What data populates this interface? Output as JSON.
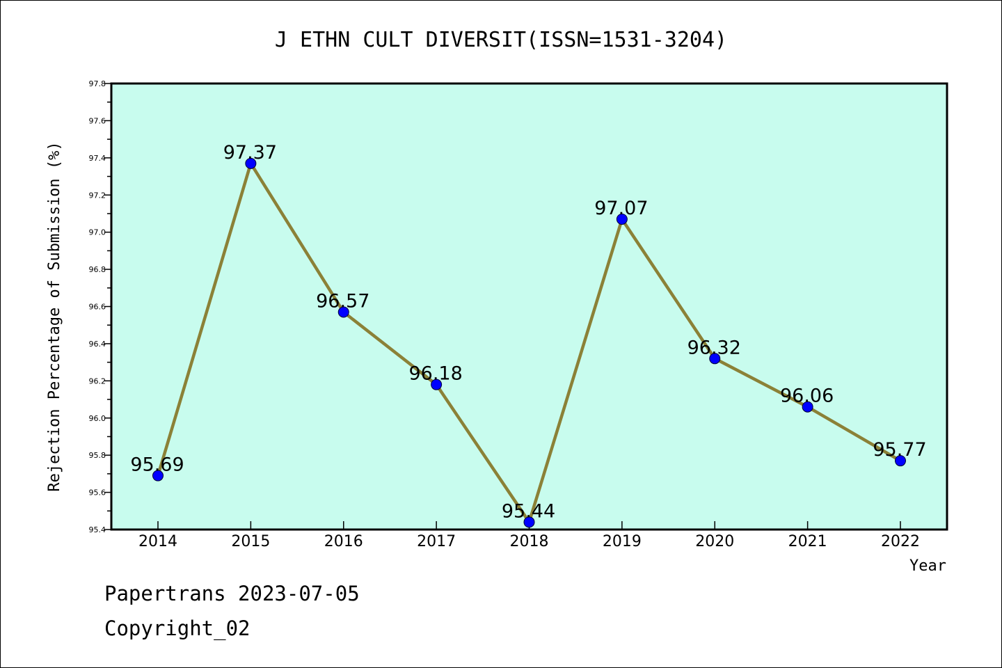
{
  "chart_data": {
    "type": "line",
    "title": "J ETHN CULT DIVERSIT(ISSN=1531-3204)",
    "xlabel": "Year",
    "ylabel": "Rejection Percentage of Submission (%)",
    "categories": [
      "2014",
      "2015",
      "2016",
      "2017",
      "2018",
      "2019",
      "2020",
      "2021",
      "2022"
    ],
    "series": [
      {
        "values": [
          95.69,
          97.37,
          96.57,
          96.18,
          95.44,
          97.07,
          96.32,
          96.06,
          95.77
        ],
        "labels": [
          "95.69",
          "97.37",
          "96.57",
          "96.18",
          "95.44",
          "97.07",
          "96.32",
          "96.06",
          "95.77"
        ]
      }
    ],
    "ylim": [
      95.4,
      97.8
    ],
    "yticks": [
      "95.4",
      "95.6",
      "95.8",
      "96.0",
      "96.2",
      "96.4",
      "96.6",
      "96.8",
      "97.0",
      "97.2",
      "97.4",
      "97.6",
      "97.8"
    ],
    "grid": false,
    "colors": {
      "plot_background": "#c8fcee",
      "line": "#8b8137",
      "marker": "#0000ff"
    }
  },
  "footer": {
    "line1": "Papertrans 2023-07-05",
    "line2": "Copyright_02"
  }
}
